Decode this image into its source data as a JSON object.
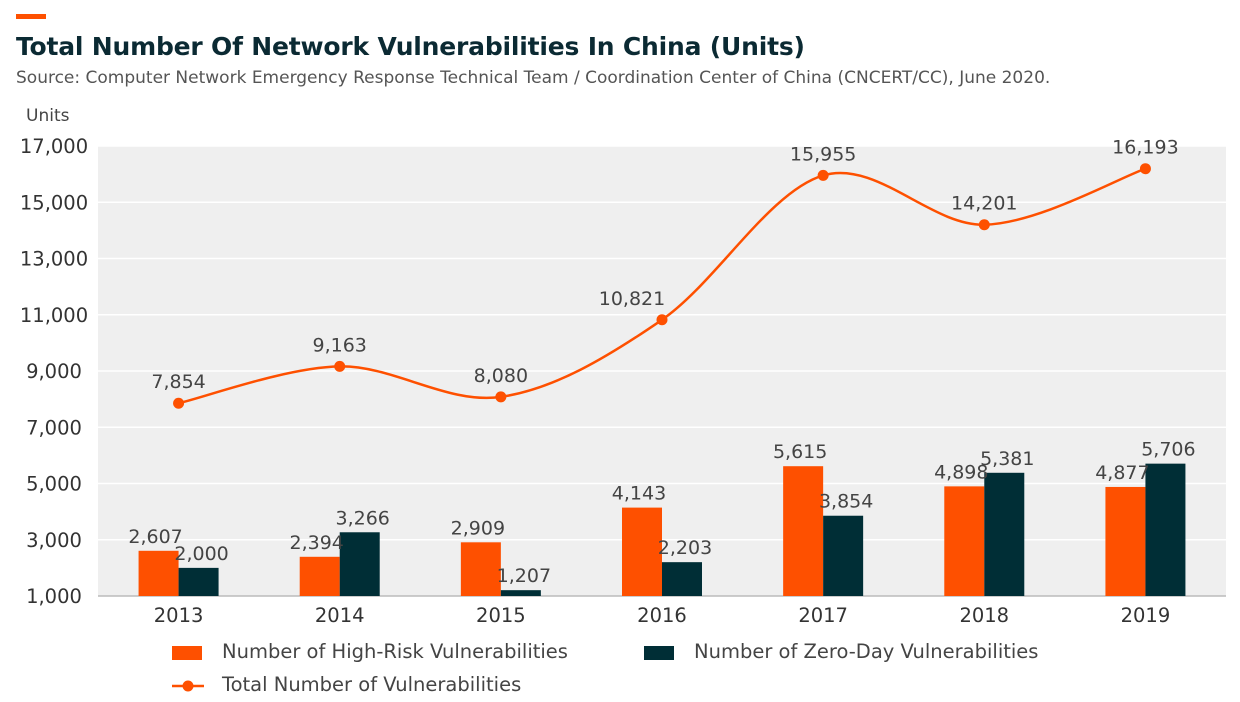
{
  "header": {
    "title": "Total Number Of Network Vulnerabilities In China (Units)",
    "subtitle": "Source: Computer Network Emergency Response Technical Team / Coordination Center of China (CNCERT/CC), June 2020."
  },
  "colors": {
    "accent": "#fe5000",
    "high_risk": "#fe5000",
    "zero_day": "#002e36",
    "total": "#fe5000",
    "plot_bg": "#efefef",
    "grid": "#ffffff"
  },
  "chart_data": {
    "type": "bar",
    "ylabel": "Units",
    "ylim": [
      1000,
      17000
    ],
    "yticks": [
      1000,
      3000,
      5000,
      7000,
      9000,
      11000,
      13000,
      15000,
      17000
    ],
    "ytick_labels": [
      "1,000",
      "3,000",
      "5,000",
      "7,000",
      "9,000",
      "11,000",
      "13,000",
      "15,000",
      "17,000"
    ],
    "categories": [
      "2013",
      "2014",
      "2015",
      "2016",
      "2017",
      "2018",
      "2019"
    ],
    "series": [
      {
        "name": "Number of High-Risk Vulnerabilities",
        "kind": "bar",
        "values": [
          2607,
          2394,
          2909,
          4143,
          5615,
          4898,
          4877
        ],
        "labels": [
          "2,607",
          "2,394",
          "2,909",
          "4,143",
          "5,615",
          "4,898",
          "4,877"
        ]
      },
      {
        "name": "Number of Zero-Day Vulnerabilities",
        "kind": "bar",
        "values": [
          2000,
          3266,
          1207,
          2203,
          3854,
          5381,
          5706
        ],
        "labels": [
          "2,000",
          "3,266",
          "1,207",
          "2,203",
          "3,854",
          "5,381",
          "5,706"
        ]
      },
      {
        "name": "Total Number of Vulnerabilities",
        "kind": "line",
        "values": [
          7854,
          9163,
          8080,
          10821,
          15955,
          14201,
          16193
        ],
        "labels": [
          "7,854",
          "9,163",
          "8,080",
          "10,821",
          "15,955",
          "14,201",
          "16,193"
        ]
      }
    ],
    "grid": true,
    "legend_position": "bottom"
  }
}
